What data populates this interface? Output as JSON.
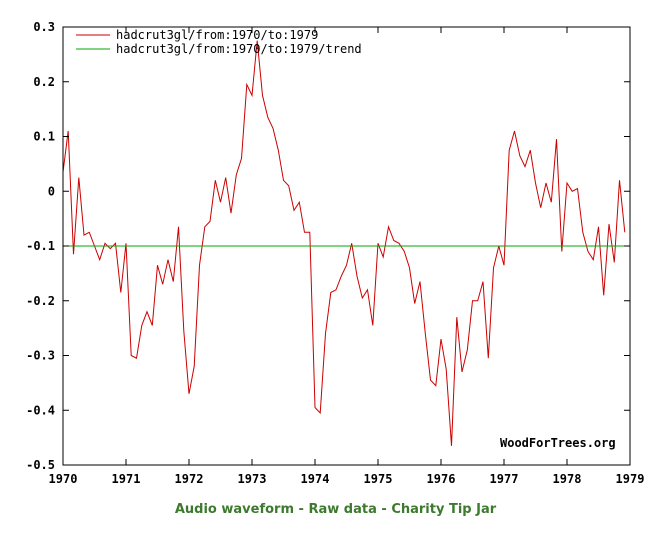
{
  "chart_data": {
    "type": "line",
    "xlim": [
      1970,
      1979
    ],
    "ylim": [
      -0.5,
      0.3
    ],
    "x_ticks": [
      "1970",
      "1971",
      "1972",
      "1973",
      "1974",
      "1975",
      "1976",
      "1977",
      "1978",
      "1979"
    ],
    "y_ticks": [
      "0.3",
      "0.2",
      "0.1",
      "0",
      "-0.1",
      "-0.2",
      "-0.3",
      "-0.4",
      "-0.5"
    ],
    "grid": false,
    "legend_position": "top-left",
    "watermark": "WoodForTrees.org",
    "series": [
      {
        "name": "hadcrut3gl/from:1970/to:1979",
        "color": "#cc0000",
        "x": [
          1970.0,
          1970.083,
          1970.167,
          1970.25,
          1970.333,
          1970.417,
          1970.5,
          1970.583,
          1970.667,
          1970.75,
          1970.833,
          1970.917,
          1971.0,
          1971.083,
          1971.167,
          1971.25,
          1971.333,
          1971.417,
          1971.5,
          1971.583,
          1971.667,
          1971.75,
          1971.833,
          1971.917,
          1972.0,
          1972.083,
          1972.167,
          1972.25,
          1972.333,
          1972.417,
          1972.5,
          1972.583,
          1972.667,
          1972.75,
          1972.833,
          1972.917,
          1973.0,
          1973.083,
          1973.167,
          1973.25,
          1973.333,
          1973.417,
          1973.5,
          1973.583,
          1973.667,
          1973.75,
          1973.833,
          1973.917,
          1974.0,
          1974.083,
          1974.167,
          1974.25,
          1974.333,
          1974.417,
          1974.5,
          1974.583,
          1974.667,
          1974.75,
          1974.833,
          1974.917,
          1975.0,
          1975.083,
          1975.167,
          1975.25,
          1975.333,
          1975.417,
          1975.5,
          1975.583,
          1975.667,
          1975.75,
          1975.833,
          1975.917,
          1976.0,
          1976.083,
          1976.167,
          1976.25,
          1976.333,
          1976.417,
          1976.5,
          1976.583,
          1976.667,
          1976.75,
          1976.833,
          1976.917,
          1977.0,
          1977.083,
          1977.167,
          1977.25,
          1977.333,
          1977.417,
          1977.5,
          1977.583,
          1977.667,
          1977.75,
          1977.833,
          1977.917,
          1978.0,
          1978.083,
          1978.167,
          1978.25,
          1978.333,
          1978.417,
          1978.5,
          1978.583,
          1978.667,
          1978.75,
          1978.833,
          1978.917
        ],
        "y": [
          0.035,
          0.11,
          -0.115,
          0.025,
          -0.08,
          -0.075,
          -0.1,
          -0.125,
          -0.095,
          -0.105,
          -0.095,
          -0.185,
          -0.095,
          -0.3,
          -0.305,
          -0.245,
          -0.22,
          -0.245,
          -0.135,
          -0.17,
          -0.125,
          -0.165,
          -0.065,
          -0.255,
          -0.37,
          -0.32,
          -0.135,
          -0.065,
          -0.055,
          0.02,
          -0.02,
          0.025,
          -0.04,
          0.03,
          0.06,
          0.195,
          0.175,
          0.275,
          0.175,
          0.135,
          0.115,
          0.075,
          0.02,
          0.01,
          -0.035,
          -0.02,
          -0.075,
          -0.075,
          -0.395,
          -0.405,
          -0.26,
          -0.185,
          -0.18,
          -0.155,
          -0.135,
          -0.095,
          -0.155,
          -0.195,
          -0.18,
          -0.245,
          -0.095,
          -0.12,
          -0.065,
          -0.09,
          -0.095,
          -0.11,
          -0.14,
          -0.205,
          -0.165,
          -0.26,
          -0.345,
          -0.355,
          -0.27,
          -0.325,
          -0.465,
          -0.23,
          -0.33,
          -0.29,
          -0.2,
          -0.2,
          -0.165,
          -0.305,
          -0.14,
          -0.1,
          -0.135,
          0.075,
          0.11,
          0.065,
          0.045,
          0.075,
          0.015,
          -0.03,
          0.015,
          -0.02,
          0.095,
          -0.11,
          0.015,
          0.0,
          0.005,
          -0.075,
          -0.11,
          -0.125,
          -0.065,
          -0.19,
          -0.06,
          -0.13,
          0.02,
          -0.075
        ]
      },
      {
        "name": "hadcrut3gl/from:1970/to:1979/trend",
        "color": "#00aa00",
        "x": [
          1970.0,
          1979.0
        ],
        "y": [
          -0.1,
          -0.1
        ]
      }
    ]
  },
  "footer": {
    "links": [
      "Audio waveform",
      "Raw data",
      "Charity Tip Jar"
    ],
    "separator": " - "
  }
}
